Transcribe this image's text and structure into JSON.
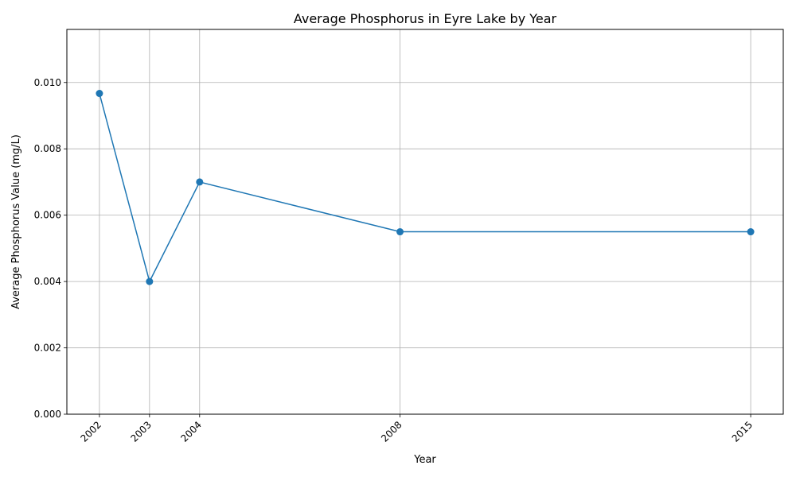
{
  "chart_data": {
    "type": "line",
    "title": "Average Phosphorus in Eyre Lake by Year",
    "xlabel": "Year",
    "ylabel": "Average Phosphorus Value (mg/L)",
    "x": [
      2002,
      2003,
      2004,
      2008,
      2015
    ],
    "x_tick_labels": [
      "2002",
      "2003",
      "2004",
      "2008",
      "2015"
    ],
    "values": [
      0.00967,
      0.004,
      0.007,
      0.0055,
      0.0055
    ],
    "ylim": [
      0,
      0.0116
    ],
    "xlim": [
      2001.35,
      2015.65
    ],
    "y_ticks": [
      0,
      0.002,
      0.004,
      0.006,
      0.008,
      0.01
    ],
    "y_tick_labels": [
      "0.000",
      "0.002",
      "0.004",
      "0.006",
      "0.008",
      "0.010"
    ],
    "grid": true,
    "marker": "circle",
    "line_color": "#1f77b4"
  }
}
